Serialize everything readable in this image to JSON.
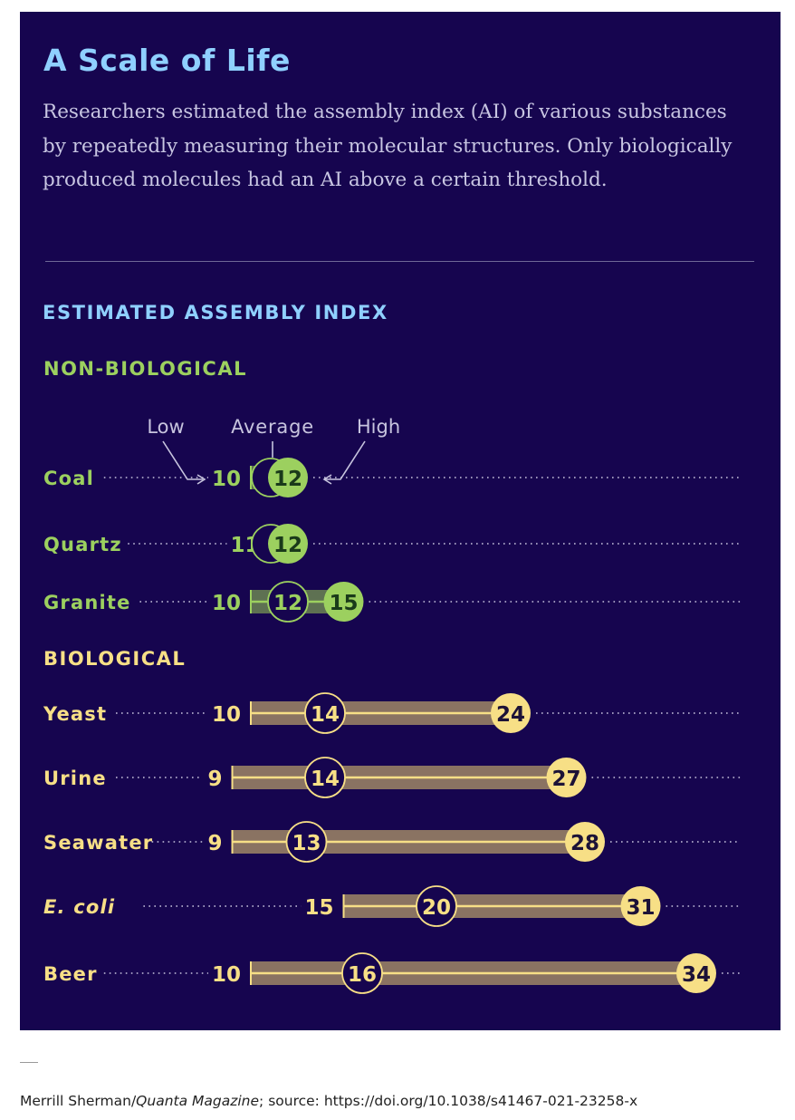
{
  "title": "A Scale of Life",
  "description": "Researchers estimated the assembly index (AI) of various substances by repeatedly measuring their molecular structures. Only biologically produced molecules had an AI above a certain threshold.",
  "credit": {
    "author": "Merrill Sherman/",
    "publication": "Quanta Magazine",
    "source": "; source: https://doi.org/10.1038/s41467-021-23258-x"
  },
  "colors": {
    "background": "#16054f",
    "title": "#8fd0ff",
    "nonbio": "#9cd05f",
    "nonbio_bar": "#5e7152",
    "bio": "#f7df86",
    "bio_bar": "#8a7362",
    "dots": "#c7c4de"
  },
  "chart_data": {
    "type": "range-dot",
    "title": "ESTIMATED ASSEMBLY INDEX",
    "legend": {
      "low": "Low",
      "average": "Average",
      "high": "High"
    },
    "groups": [
      {
        "name": "NON-BIOLOGICAL",
        "kind": "nonbio",
        "items": [
          {
            "name": "Coal",
            "italic": false,
            "low": 10,
            "average": 12,
            "high": 12
          },
          {
            "name": "Quartz",
            "italic": false,
            "low": 11,
            "average": 12,
            "high": 12
          },
          {
            "name": "Granite",
            "italic": false,
            "low": 10,
            "average": 12,
            "high": 15
          }
        ]
      },
      {
        "name": "BIOLOGICAL",
        "kind": "bio",
        "items": [
          {
            "name": "Yeast",
            "italic": false,
            "low": 10,
            "average": 14,
            "high": 24
          },
          {
            "name": "Urine",
            "italic": false,
            "low": 9,
            "average": 14,
            "high": 27
          },
          {
            "name": "Seawater",
            "italic": false,
            "low": 9,
            "average": 13,
            "high": 28
          },
          {
            "name": "E. coli",
            "italic": true,
            "low": 15,
            "average": 20,
            "high": 31
          },
          {
            "name": "Beer",
            "italic": false,
            "low": 10,
            "average": 16,
            "high": 34
          }
        ]
      }
    ]
  }
}
